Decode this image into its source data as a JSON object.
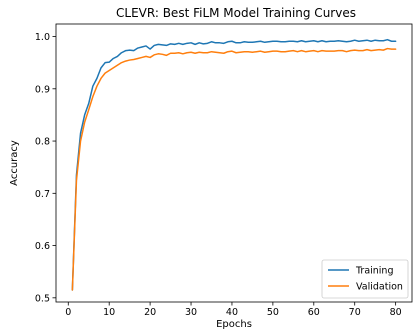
{
  "chart_data": {
    "type": "line",
    "title": "CLEVR: Best FiLM Model Training Curves",
    "xlabel": "Epochs",
    "ylabel": "Accuracy",
    "xlim": [
      -3,
      84
    ],
    "ylim": [
      0.492,
      1.024
    ],
    "xticks": [
      0,
      10,
      20,
      30,
      40,
      50,
      60,
      70,
      80
    ],
    "yticks": [
      0.5,
      0.6,
      0.7,
      0.8,
      0.9,
      1.0
    ],
    "ytick_labels": [
      "0.5",
      "0.6",
      "0.7",
      "0.8",
      "0.9",
      "1.0"
    ],
    "grid": false,
    "legend_position": "bottom-right",
    "x": [
      1,
      2,
      3,
      4,
      5,
      6,
      7,
      8,
      9,
      10,
      11,
      12,
      13,
      14,
      15,
      16,
      17,
      18,
      19,
      20,
      21,
      22,
      23,
      24,
      25,
      26,
      27,
      28,
      29,
      30,
      31,
      32,
      33,
      34,
      35,
      36,
      37,
      38,
      39,
      40,
      41,
      42,
      43,
      44,
      45,
      46,
      47,
      48,
      49,
      50,
      51,
      52,
      53,
      54,
      55,
      56,
      57,
      58,
      59,
      60,
      61,
      62,
      63,
      64,
      65,
      66,
      67,
      68,
      69,
      70,
      71,
      72,
      73,
      74,
      75,
      76,
      77,
      78,
      79,
      80
    ],
    "series": [
      {
        "name": "Training",
        "color": "#1f77b4",
        "values": [
          0.515,
          0.735,
          0.815,
          0.85,
          0.872,
          0.905,
          0.92,
          0.94,
          0.95,
          0.951,
          0.958,
          0.962,
          0.969,
          0.973,
          0.974,
          0.973,
          0.978,
          0.98,
          0.982,
          0.976,
          0.983,
          0.985,
          0.984,
          0.983,
          0.986,
          0.985,
          0.987,
          0.985,
          0.987,
          0.988,
          0.985,
          0.988,
          0.986,
          0.987,
          0.99,
          0.988,
          0.988,
          0.987,
          0.99,
          0.991,
          0.988,
          0.988,
          0.99,
          0.989,
          0.989,
          0.99,
          0.991,
          0.989,
          0.99,
          0.991,
          0.991,
          0.99,
          0.99,
          0.991,
          0.991,
          0.99,
          0.992,
          0.99,
          0.991,
          0.992,
          0.99,
          0.992,
          0.99,
          0.991,
          0.991,
          0.992,
          0.991,
          0.99,
          0.991,
          0.993,
          0.991,
          0.992,
          0.993,
          0.991,
          0.993,
          0.992,
          0.992,
          0.994,
          0.991,
          0.991
        ]
      },
      {
        "name": "Validation",
        "color": "#ff7f0e",
        "values": [
          0.515,
          0.725,
          0.8,
          0.836,
          0.86,
          0.885,
          0.905,
          0.92,
          0.93,
          0.935,
          0.94,
          0.945,
          0.95,
          0.953,
          0.955,
          0.956,
          0.958,
          0.96,
          0.962,
          0.96,
          0.965,
          0.967,
          0.966,
          0.964,
          0.968,
          0.968,
          0.969,
          0.967,
          0.969,
          0.97,
          0.968,
          0.97,
          0.969,
          0.969,
          0.971,
          0.97,
          0.969,
          0.968,
          0.971,
          0.972,
          0.969,
          0.97,
          0.971,
          0.971,
          0.97,
          0.971,
          0.972,
          0.97,
          0.971,
          0.972,
          0.972,
          0.971,
          0.971,
          0.972,
          0.973,
          0.971,
          0.973,
          0.971,
          0.972,
          0.973,
          0.971,
          0.973,
          0.972,
          0.972,
          0.972,
          0.973,
          0.973,
          0.971,
          0.973,
          0.974,
          0.973,
          0.973,
          0.975,
          0.973,
          0.974,
          0.975,
          0.974,
          0.977,
          0.976,
          0.976
        ]
      }
    ]
  }
}
